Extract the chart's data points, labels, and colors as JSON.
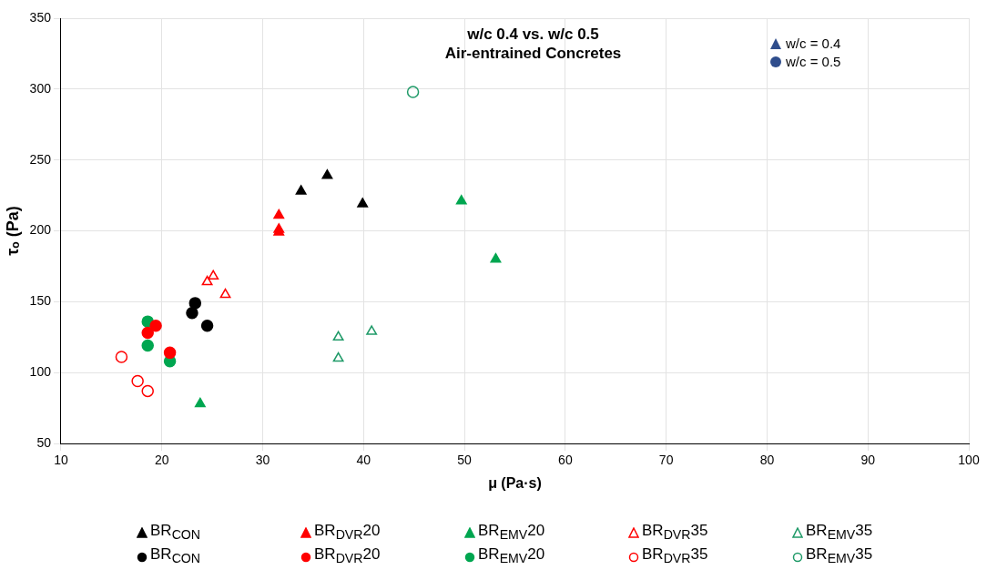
{
  "chart_data": {
    "type": "scatter",
    "title": "w/c 0.4 vs. w/c 0.5",
    "subtitle": "Air-entrained Concretes",
    "xlabel": "μ (Pa·s)",
    "ylabel": "τₒ (Pa)",
    "xlim": [
      10,
      100
    ],
    "xticks": [
      10,
      20,
      30,
      40,
      50,
      60,
      70,
      80,
      90,
      100
    ],
    "ylim": [
      50,
      350
    ],
    "yticks": [
      50,
      100,
      150,
      200,
      250,
      300,
      350
    ],
    "grid": true,
    "legend": "bottom",
    "annotations": [
      "w/c = 0.4",
      "w/c = 0.5"
    ],
    "series": [
      {
        "name": "BR$_{CON}$",
        "color": "#000000",
        "marker": "triangle",
        "x": [
          33.8,
          36.4,
          39.9
        ],
        "values": [
          228,
          239,
          219
        ]
      },
      {
        "name": "BR$_{DVR}$20",
        "color": "#ff0000",
        "marker": "triangle",
        "x": [
          31.6,
          31.6,
          31.6
        ],
        "values": [
          211,
          201,
          199
        ]
      },
      {
        "name": "BR$_{EMV}$20",
        "color": "#00a650",
        "marker": "triangle",
        "x": [
          49.7,
          53.1,
          23.8
        ],
        "values": [
          221,
          180,
          78
        ]
      },
      {
        "name": "BR$_{DVR}$35",
        "color": "#ff0000",
        "marker": "triangle",
        "x": [
          24.5,
          25.1,
          26.3
        ],
        "values": [
          164,
          168,
          155
        ]
      },
      {
        "name": "BR$_{EMV}$35",
        "color": "#1f9a68",
        "marker": "triangle",
        "x": [
          37.5,
          37.5,
          40.8
        ],
        "values": [
          125,
          110,
          129
        ]
      },
      {
        "name": "BR$_{CON}$",
        "color": "#000000",
        "marker": "circle",
        "x": [
          23.3,
          23.0,
          24.5
        ],
        "values": [
          149,
          142,
          133
        ]
      },
      {
        "name": "BR$_{DVR}$20",
        "color": "#ff0000",
        "marker": "circle",
        "x": [
          19.4,
          18.6,
          20.8
        ],
        "values": [
          133,
          128,
          114
        ]
      },
      {
        "name": "BR$_{EMV}$20",
        "color": "#00a650",
        "marker": "circle",
        "x": [
          18.6,
          18.6,
          20.8
        ],
        "values": [
          136,
          119,
          108
        ]
      },
      {
        "name": "BR$_{DVR}$35",
        "color": "#ff0000",
        "marker": "circle",
        "x": [
          16.0,
          17.6,
          18.6
        ],
        "values": [
          111,
          94,
          87
        ]
      },
      {
        "name": "BR$_{EMV}$35",
        "color": "#1f9a68",
        "marker": "circle",
        "x": [
          44.9
        ],
        "values": [
          298
        ]
      }
    ]
  }
}
